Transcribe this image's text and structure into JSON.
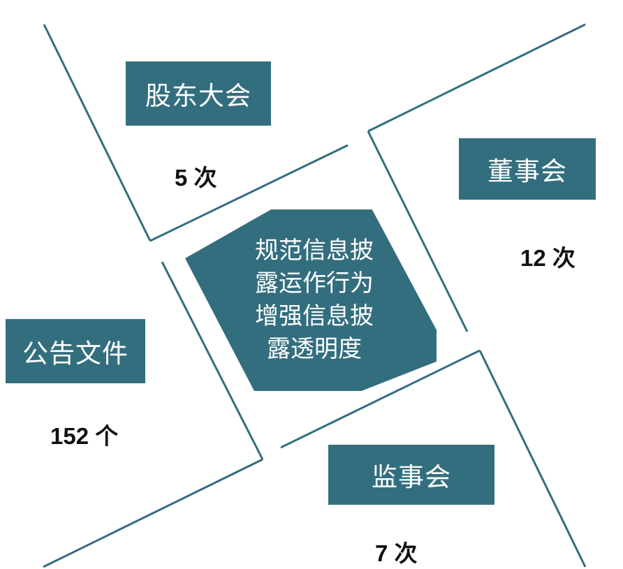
{
  "diagram": {
    "center_lines": [
      "规范信息披",
      "露运作行为",
      "增强信息披",
      "露透明度"
    ],
    "quadrants": [
      {
        "id": "shareholders",
        "label": "股东大会",
        "count": "5 次"
      },
      {
        "id": "board",
        "label": "董事会",
        "count": "12 次"
      },
      {
        "id": "announcements",
        "label": "公告文件",
        "count": "152 个"
      },
      {
        "id": "supervisors",
        "label": "监事会",
        "count": "7 次"
      }
    ],
    "colors": {
      "box_fill": "#336e7e",
      "line": "#336e7e",
      "count_text": "#111111",
      "box_text": "#ffffff"
    }
  }
}
